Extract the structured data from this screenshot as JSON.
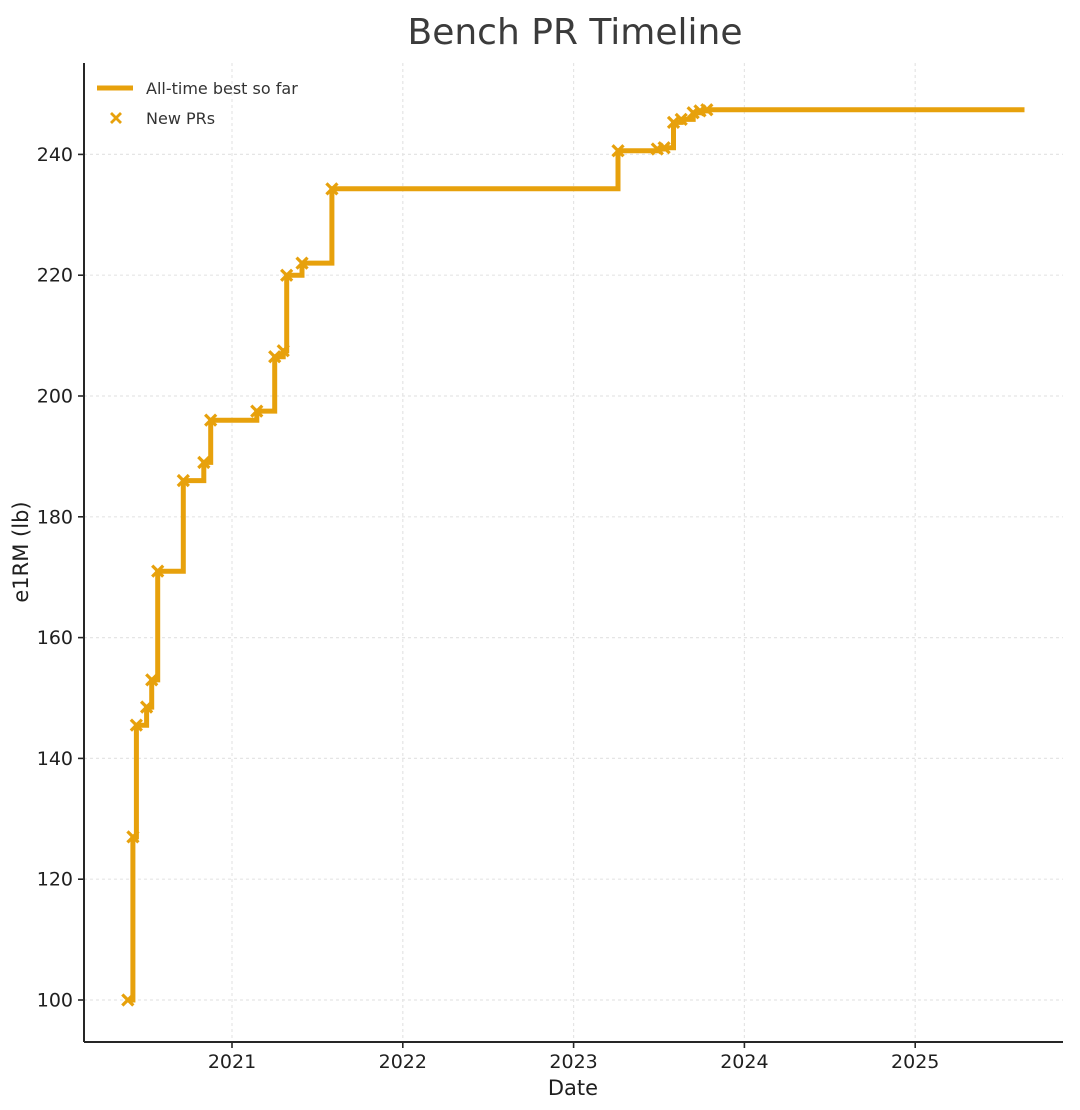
{
  "page": {
    "background": "#ffffff"
  },
  "chart_data": {
    "type": "line",
    "subtype": "step-post-with-x-markers",
    "title": "Bench PR Timeline",
    "xlabel": "Date",
    "ylabel": "e1RM (lb)",
    "x_tick_values": [
      2021,
      2022,
      2023,
      2024,
      2025
    ],
    "x_tick_labels": [
      "2021",
      "2022",
      "2023",
      "2024",
      "2025"
    ],
    "y_tick_values": [
      100,
      120,
      140,
      160,
      180,
      200,
      220,
      240
    ],
    "y_tick_labels": [
      "100",
      "120",
      "140",
      "160",
      "180",
      "200",
      "220",
      "240"
    ],
    "xlim": [
      2020.13,
      2025.86
    ],
    "ylim": [
      93,
      255
    ],
    "grid": {
      "visible": true,
      "style": "dashed",
      "color": "#E5E5E5"
    },
    "legend": {
      "position": "upper-left",
      "frame": false,
      "entries": [
        {
          "label": "All-time best so far",
          "swatch": "thick-line"
        },
        {
          "label": "New PRs",
          "swatch": "x-marker"
        }
      ]
    },
    "colors": {
      "series": "#E7A10C",
      "title_text": "#3B3B3B",
      "axis_text": "#1F1F1F",
      "legend_text": "#333333",
      "spine": "#262626"
    },
    "series": [
      {
        "name": "All-time best so far",
        "type": "step-post",
        "points": [
          [
            2020.39,
            100
          ],
          [
            2020.42,
            127
          ],
          [
            2020.44,
            145.5
          ],
          [
            2020.5,
            148.5
          ],
          [
            2020.53,
            153
          ],
          [
            2020.565,
            171
          ],
          [
            2020.715,
            186
          ],
          [
            2020.835,
            189
          ],
          [
            2020.875,
            196
          ],
          [
            2021.145,
            197.5
          ],
          [
            2021.25,
            206.5
          ],
          [
            2021.3,
            207.5
          ],
          [
            2021.32,
            220
          ],
          [
            2021.41,
            222
          ],
          [
            2021.585,
            234.3
          ],
          [
            2023.26,
            240.6
          ],
          [
            2023.49,
            240.9
          ],
          [
            2023.53,
            241.1
          ],
          [
            2023.585,
            245.3
          ],
          [
            2023.63,
            245.8
          ],
          [
            2023.7,
            246.9
          ],
          [
            2023.74,
            247.2
          ],
          [
            2023.78,
            247.4
          ]
        ],
        "line_end_x": 2025.64
      },
      {
        "name": "New PRs",
        "type": "scatter",
        "marker": "x",
        "same_points_as": "All-time best so far"
      }
    ]
  }
}
